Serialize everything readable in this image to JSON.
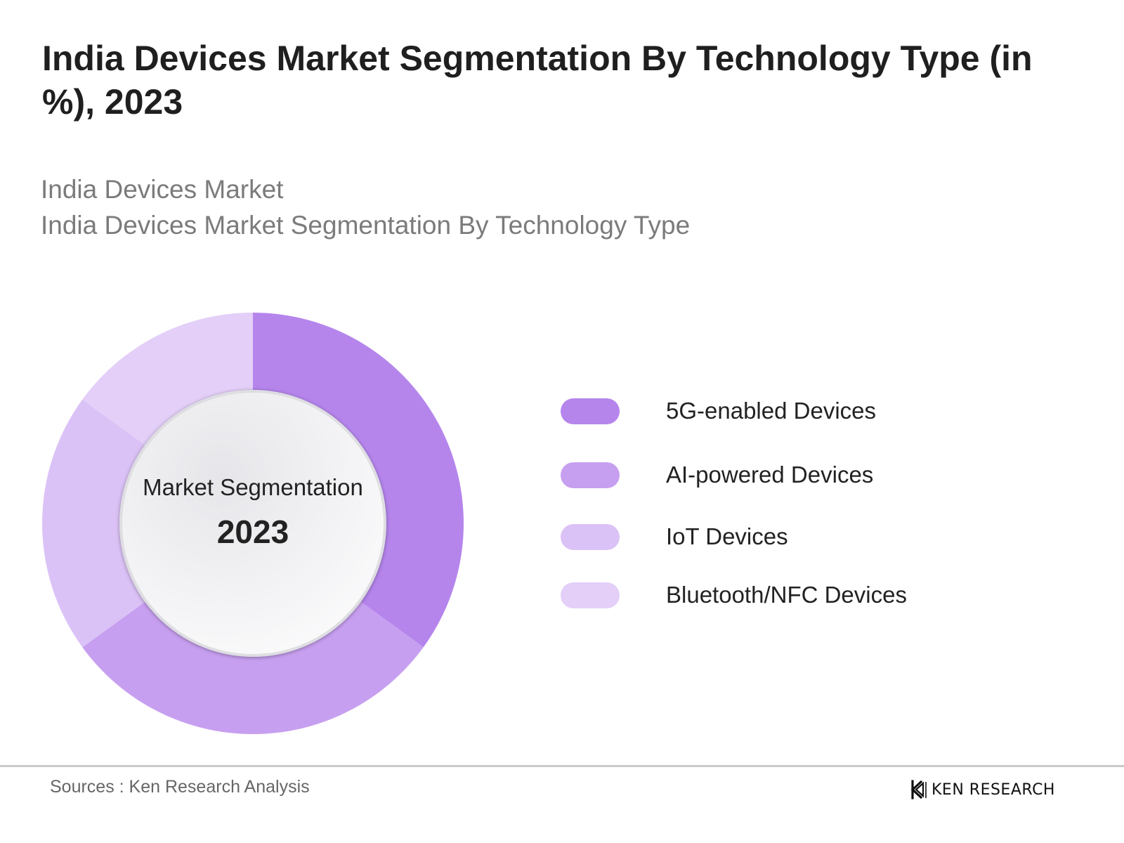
{
  "header": {
    "title": "India Devices Market Segmentation By Technology Type (in %), 2023",
    "subtitle_line1": "India Devices Market",
    "subtitle_line2": "India Devices Market Segmentation By Technology Type"
  },
  "center": {
    "label": "Market Segmentation",
    "year": "2023"
  },
  "chart_data": {
    "type": "pie",
    "categories": [
      "5G-enabled Devices",
      "AI-powered Devices",
      "IoT Devices",
      "Bluetooth/NFC Devices"
    ],
    "values": [
      35,
      30,
      20,
      15
    ],
    "colors": [
      "#b585ec",
      "#c79ff0",
      "#dbc2f6",
      "#e3cff8"
    ],
    "legend_position": "right",
    "donut": true
  },
  "footer": {
    "source": "Sources : Ken Research Analysis",
    "brand_name": "KEN RESEARCH",
    "brand_mark": "K"
  }
}
